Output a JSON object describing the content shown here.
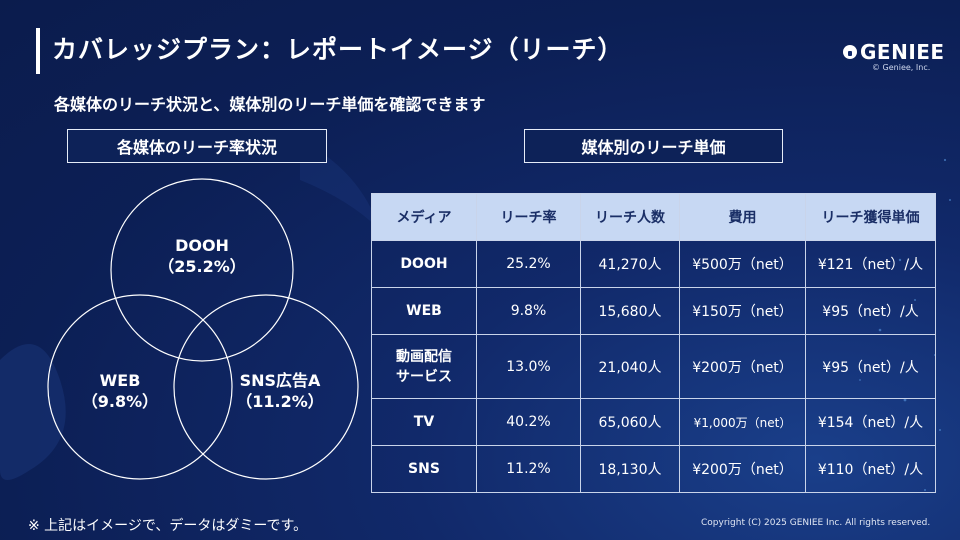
{
  "header": {
    "title": "カバレッジプラン：レポートイメージ（リーチ）",
    "logo_text": "GENIEE",
    "logo_sub": "© Geniee, Inc."
  },
  "subtitle": "各媒体のリーチ状況と、媒体別のリーチ単価を確認できます",
  "left_section": {
    "label": "各媒体のリーチ率状況",
    "venn": [
      {
        "name": "DOOH",
        "value": "（25.2%）"
      },
      {
        "name": "WEB",
        "value": "（9.8%）"
      },
      {
        "name": "SNS広告A",
        "value": "（11.2%）"
      }
    ]
  },
  "right_section": {
    "label": "媒体別のリーチ単価",
    "table": {
      "headers": [
        "メディア",
        "リーチ率",
        "リーチ人数",
        "費用",
        "リーチ獲得単価"
      ],
      "rows": [
        [
          "DOOH",
          "25.2%",
          "41,270人",
          "¥500万（net）",
          "¥121（net）/人"
        ],
        [
          "WEB",
          "9.8%",
          "15,680人",
          "¥150万（net）",
          "¥95（net）/人"
        ],
        [
          "動画配信サービス",
          "13.0%",
          "21,040人",
          "¥200万（net）",
          "¥95（net）/人"
        ],
        [
          "TV",
          "40.2%",
          "65,060人",
          "¥1,000万（net）",
          "¥154（net）/人"
        ],
        [
          "SNS",
          "11.2%",
          "18,130人",
          "¥200万（net）",
          "¥110（net）/人"
        ]
      ],
      "media_line_split": [
        "動画配信",
        "サービス"
      ]
    }
  },
  "footer": {
    "note": "※ 上記はイメージで、データはダミーです。",
    "copyright": "Copyright (C) 2025 GENIEE Inc. All rights reserved."
  },
  "colors": {
    "background": "#0c1f55",
    "header_cell": "#c7d8f3",
    "border": "#c9d4ea"
  }
}
